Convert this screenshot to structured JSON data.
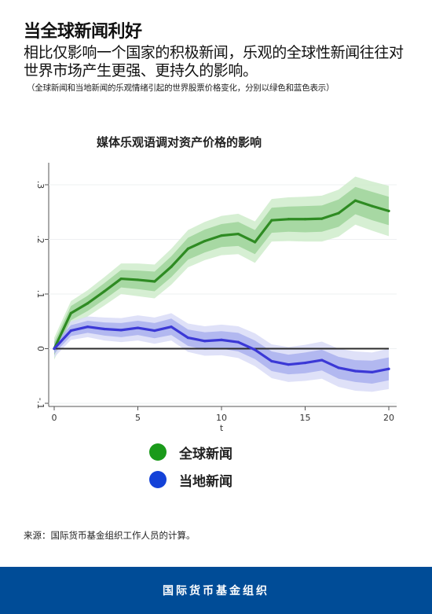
{
  "header": {
    "title": "当全球新闻利好",
    "subtitle": "相比仅影响一个国家的积极新闻，乐观的全球性新闻往往对世界市场产生更强、更持久的影响。",
    "note": "（全球新闻和当地新闻的乐观情绪引起的世界股票价格变化，分别以绿色和蓝色表示）"
  },
  "colors": {
    "global_line": "#2e8b22",
    "global_band_inner": "#9fd49a",
    "global_band_outer": "#cfeccb",
    "local_line": "#3b38d6",
    "local_band_inner": "#aab0ee",
    "local_band_outer": "#d9dcf7",
    "legend_green": "#1a9a1a",
    "legend_blue": "#1442d8",
    "footer_bg": "#004c97"
  },
  "chart_data": {
    "type": "line",
    "title": "媒体乐观语调对资产价格的影响",
    "xlabel": "t",
    "ylabel": "",
    "xlim": [
      0,
      20
    ],
    "ylim": [
      -0.1,
      0.3
    ],
    "xticks": [
      0,
      5,
      10,
      15,
      20
    ],
    "yticks": [
      -0.1,
      0,
      0.1,
      0.2,
      0.3
    ],
    "ytick_labels": [
      "-.1",
      "0",
      ".1",
      ".2",
      ".3"
    ],
    "x": [
      0,
      1,
      2,
      3,
      4,
      5,
      6,
      7,
      8,
      9,
      10,
      11,
      12,
      13,
      14,
      15,
      16,
      17,
      18,
      19,
      20
    ],
    "series": [
      {
        "name": "全球新闻",
        "values": [
          0,
          0.065,
          0.083,
          0.105,
          0.128,
          0.126,
          0.123,
          0.15,
          0.183,
          0.197,
          0.207,
          0.21,
          0.195,
          0.235,
          0.237,
          0.237,
          0.238,
          0.248,
          0.271,
          0.261,
          0.252
        ],
        "band_inner": [
          0.012,
          0.013,
          0.014,
          0.015,
          0.016,
          0.017,
          0.018,
          0.019,
          0.02,
          0.021,
          0.021,
          0.022,
          0.022,
          0.023,
          0.023,
          0.024,
          0.024,
          0.025,
          0.025,
          0.026,
          0.026
        ],
        "band_outer": [
          0.02,
          0.022,
          0.024,
          0.026,
          0.028,
          0.03,
          0.031,
          0.033,
          0.034,
          0.035,
          0.036,
          0.037,
          0.038,
          0.039,
          0.04,
          0.041,
          0.042,
          0.043,
          0.044,
          0.045,
          0.046
        ]
      },
      {
        "name": "当地新闻",
        "values": [
          0,
          0.033,
          0.04,
          0.036,
          0.034,
          0.038,
          0.033,
          0.04,
          0.02,
          0.014,
          0.016,
          0.012,
          -0.002,
          -0.023,
          -0.029,
          -0.026,
          -0.021,
          -0.035,
          -0.041,
          -0.043,
          -0.037
        ],
        "band_inner": [
          0.009,
          0.01,
          0.011,
          0.012,
          0.013,
          0.013,
          0.014,
          0.015,
          0.015,
          0.016,
          0.016,
          0.017,
          0.017,
          0.018,
          0.018,
          0.019,
          0.019,
          0.02,
          0.02,
          0.021,
          0.021
        ],
        "band_outer": [
          0.016,
          0.017,
          0.019,
          0.021,
          0.022,
          0.023,
          0.024,
          0.025,
          0.026,
          0.027,
          0.028,
          0.029,
          0.03,
          0.031,
          0.032,
          0.033,
          0.034,
          0.035,
          0.036,
          0.036,
          0.037
        ]
      }
    ],
    "legend": {
      "placement": "bottom"
    },
    "grid": true
  },
  "legend_labels": [
    "全球新闻",
    "当地新闻"
  ],
  "source": "来源：国际货币基金组织工作人员的计算。",
  "footer": "国际货币基金组织"
}
